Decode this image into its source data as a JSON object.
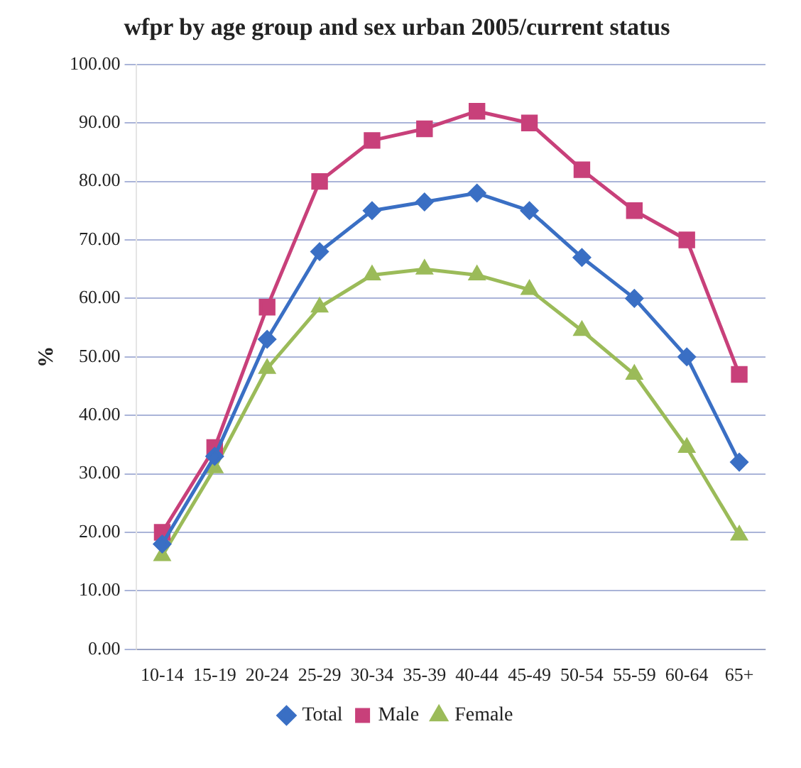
{
  "chart_data": {
    "type": "line",
    "title": "wfpr by age group and sex urban 2005/current status",
    "ylabel": "%",
    "categories": [
      "10-14",
      "15-19",
      "20-24",
      "25-29",
      "30-34",
      "35-39",
      "40-44",
      "45-49",
      "50-54",
      "55-59",
      "60-64",
      "65+"
    ],
    "series": [
      {
        "name": "Total",
        "color": "#3a6fc4",
        "marker": "diamond",
        "values": [
          18,
          33,
          53,
          68,
          75,
          76.5,
          78,
          75,
          67,
          60,
          50,
          32
        ]
      },
      {
        "name": "Male",
        "color": "#c8407a",
        "marker": "square",
        "values": [
          20,
          34.5,
          58.5,
          80,
          87,
          89,
          92,
          90,
          82,
          75,
          70,
          47
        ]
      },
      {
        "name": "Female",
        "color": "#9bbb59",
        "marker": "triangle",
        "values": [
          16,
          31,
          48,
          58.5,
          64,
          65,
          64,
          61.5,
          54.5,
          47,
          34.5,
          19.5
        ]
      }
    ],
    "ylim": [
      0,
      100
    ],
    "yticks": [
      {
        "value": 0,
        "label": "0.00"
      },
      {
        "value": 10,
        "label": "10.00"
      },
      {
        "value": 20,
        "label": "20.00"
      },
      {
        "value": 30,
        "label": "30.00"
      },
      {
        "value": 40,
        "label": "40.00"
      },
      {
        "value": 50,
        "label": "50.00"
      },
      {
        "value": 60,
        "label": "60.00"
      },
      {
        "value": 70,
        "label": "70.00"
      },
      {
        "value": 80,
        "label": "80.00"
      },
      {
        "value": 90,
        "label": "90.00"
      },
      {
        "value": 100,
        "label": "100.00"
      }
    ],
    "grid": "y",
    "legend": "bottom",
    "line_style": "solid"
  }
}
